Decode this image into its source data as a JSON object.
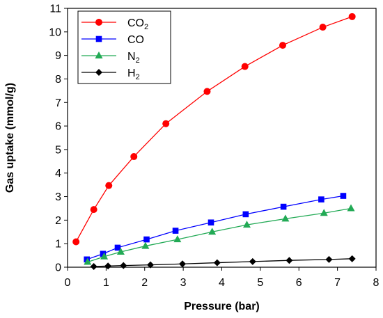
{
  "chart_data": {
    "type": "line",
    "title": "",
    "xlabel": "Pressure (bar)",
    "ylabel": "Gas uptake (mmol/g)",
    "xlim": [
      0,
      8
    ],
    "ylim": [
      0,
      11
    ],
    "x_ticks": [
      0,
      1,
      2,
      3,
      4,
      5,
      6,
      7,
      8
    ],
    "y_ticks": [
      0,
      1,
      2,
      3,
      4,
      5,
      6,
      7,
      8,
      9,
      10,
      11
    ],
    "grid": false,
    "legend_position": "top-left",
    "series": [
      {
        "name": "CO2",
        "label_main": "CO",
        "label_sub": "2",
        "color": "#ff0000",
        "marker": "circle",
        "x": [
          0.22,
          0.68,
          1.07,
          1.72,
          2.55,
          3.62,
          4.6,
          5.58,
          6.62,
          7.38
        ],
        "y": [
          1.08,
          2.45,
          3.47,
          4.7,
          6.1,
          7.47,
          8.53,
          9.43,
          10.2,
          10.65
        ]
      },
      {
        "name": "CO",
        "label_main": "CO",
        "label_sub": "",
        "color": "#0000ff",
        "marker": "square",
        "x": [
          0.5,
          0.92,
          1.3,
          2.05,
          2.8,
          3.72,
          4.62,
          5.6,
          6.58,
          7.15
        ],
        "y": [
          0.33,
          0.57,
          0.83,
          1.18,
          1.55,
          1.9,
          2.25,
          2.57,
          2.88,
          3.03
        ]
      },
      {
        "name": "N2",
        "label_main": "N",
        "label_sub": "2",
        "color": "#22aa55",
        "marker": "triangle",
        "x": [
          0.52,
          0.95,
          1.38,
          2.02,
          2.85,
          3.75,
          4.65,
          5.65,
          6.65,
          7.35
        ],
        "y": [
          0.22,
          0.45,
          0.65,
          0.9,
          1.18,
          1.5,
          1.8,
          2.06,
          2.3,
          2.5
        ]
      },
      {
        "name": "H2",
        "label_main": "H",
        "label_sub": "2",
        "color": "#000000",
        "marker": "diamond",
        "x": [
          0.68,
          1.05,
          1.45,
          2.15,
          2.98,
          3.88,
          4.8,
          5.75,
          6.78,
          7.38
        ],
        "y": [
          0.03,
          0.05,
          0.07,
          0.1,
          0.14,
          0.19,
          0.24,
          0.29,
          0.33,
          0.36
        ]
      }
    ]
  }
}
